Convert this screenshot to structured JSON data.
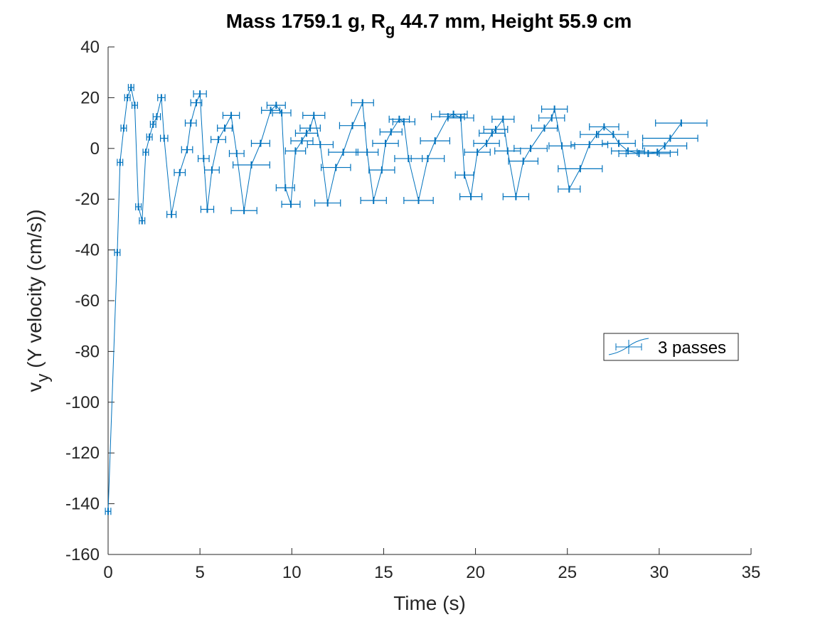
{
  "chart_data": {
    "type": "line",
    "title_parts": [
      "Mass 1759.1 g, R",
      "g",
      " 44.7 mm,  Height 55.9 cm"
    ],
    "xlabel": "Time (s)",
    "ylabel_parts": [
      "v",
      "y",
      " (Y velocity (cm/s))"
    ],
    "xlim": [
      0,
      35
    ],
    "ylim": [
      -160,
      40
    ],
    "xticks": [
      0,
      5,
      10,
      15,
      20,
      25,
      30,
      35
    ],
    "yticks": [
      40,
      20,
      0,
      -20,
      -40,
      -60,
      -80,
      -100,
      -120,
      -140,
      -160
    ],
    "grid": false,
    "legend_position": "right",
    "colors": {
      "series": "#0072bd",
      "axis": "#262626"
    },
    "series": [
      {
        "name": "3 passes",
        "points": [
          {
            "x": 0.0,
            "y": -143,
            "err": 0.15
          },
          {
            "x": 0.5,
            "y": -41,
            "err": 0.15
          },
          {
            "x": 0.65,
            "y": -5.5,
            "err": 0.15
          },
          {
            "x": 0.85,
            "y": 8,
            "err": 0.15
          },
          {
            "x": 1.05,
            "y": 20,
            "err": 0.15
          },
          {
            "x": 1.25,
            "y": 24,
            "err": 0.15
          },
          {
            "x": 1.45,
            "y": 17,
            "err": 0.15
          },
          {
            "x": 1.65,
            "y": -23,
            "err": 0.15
          },
          {
            "x": 1.85,
            "y": -28.5,
            "err": 0.15
          },
          {
            "x": 2.05,
            "y": -1.5,
            "err": 0.15
          },
          {
            "x": 2.25,
            "y": 4.5,
            "err": 0.15
          },
          {
            "x": 2.45,
            "y": 9.5,
            "err": 0.15
          },
          {
            "x": 2.65,
            "y": 12.5,
            "err": 0.2
          },
          {
            "x": 2.9,
            "y": 20,
            "err": 0.2
          },
          {
            "x": 3.05,
            "y": 4,
            "err": 0.2
          },
          {
            "x": 3.45,
            "y": -26,
            "err": 0.25
          },
          {
            "x": 3.9,
            "y": -9.5,
            "err": 0.3
          },
          {
            "x": 4.3,
            "y": -0.5,
            "err": 0.3
          },
          {
            "x": 4.5,
            "y": 10,
            "err": 0.3
          },
          {
            "x": 4.8,
            "y": 18,
            "err": 0.3
          },
          {
            "x": 5.0,
            "y": 21.5,
            "err": 0.35
          },
          {
            "x": 5.2,
            "y": -4,
            "err": 0.3
          },
          {
            "x": 5.4,
            "y": -24,
            "err": 0.35
          },
          {
            "x": 5.65,
            "y": -8.5,
            "err": 0.4
          },
          {
            "x": 6.0,
            "y": 3.5,
            "err": 0.4
          },
          {
            "x": 6.35,
            "y": 8,
            "err": 0.4
          },
          {
            "x": 6.7,
            "y": 13,
            "err": 0.45
          },
          {
            "x": 7.0,
            "y": -2,
            "err": 0.4
          },
          {
            "x": 7.4,
            "y": -24.5,
            "err": 0.7
          },
          {
            "x": 7.8,
            "y": -6.5,
            "err": 1.0
          },
          {
            "x": 8.3,
            "y": 2,
            "err": 0.5
          },
          {
            "x": 8.85,
            "y": 15,
            "err": 0.5
          },
          {
            "x": 9.15,
            "y": 17,
            "err": 0.5
          },
          {
            "x": 9.45,
            "y": 14,
            "err": 0.5
          },
          {
            "x": 9.65,
            "y": -15.5,
            "err": 0.5
          },
          {
            "x": 9.95,
            "y": -22,
            "err": 0.5
          },
          {
            "x": 10.2,
            "y": -1,
            "err": 0.55
          },
          {
            "x": 10.55,
            "y": 3,
            "err": 0.6
          },
          {
            "x": 10.8,
            "y": 6,
            "err": 0.6
          },
          {
            "x": 11.0,
            "y": 8,
            "err": 0.55
          },
          {
            "x": 11.2,
            "y": 13,
            "err": 0.6
          },
          {
            "x": 11.55,
            "y": 1.5,
            "err": 0.7
          },
          {
            "x": 11.95,
            "y": -21.5,
            "err": 0.7
          },
          {
            "x": 12.4,
            "y": -7.5,
            "err": 0.8
          },
          {
            "x": 12.8,
            "y": -1.5,
            "err": 0.8
          },
          {
            "x": 13.3,
            "y": 9,
            "err": 0.7
          },
          {
            "x": 13.85,
            "y": 18,
            "err": 0.6
          },
          {
            "x": 14.1,
            "y": -1.5,
            "err": 0.6
          },
          {
            "x": 14.45,
            "y": -20.5,
            "err": 0.7
          },
          {
            "x": 14.9,
            "y": -8.5,
            "err": 0.7
          },
          {
            "x": 15.1,
            "y": 2,
            "err": 0.7
          },
          {
            "x": 15.4,
            "y": 6.5,
            "err": 0.6
          },
          {
            "x": 15.85,
            "y": 11.5,
            "err": 0.55
          },
          {
            "x": 16.1,
            "y": 10.5,
            "err": 0.6
          },
          {
            "x": 16.35,
            "y": -4,
            "err": 0.75
          },
          {
            "x": 16.9,
            "y": -20.5,
            "err": 0.8
          },
          {
            "x": 17.4,
            "y": -4,
            "err": 0.9
          },
          {
            "x": 17.8,
            "y": 3,
            "err": 0.8
          },
          {
            "x": 18.5,
            "y": 12.5,
            "err": 0.9
          },
          {
            "x": 18.8,
            "y": 13.5,
            "err": 0.75
          },
          {
            "x": 19.2,
            "y": 12,
            "err": 0.7
          },
          {
            "x": 19.4,
            "y": -10.5,
            "err": 0.5
          },
          {
            "x": 19.75,
            "y": -19,
            "err": 0.6
          },
          {
            "x": 20.1,
            "y": -1.5,
            "err": 0.7
          },
          {
            "x": 20.6,
            "y": 2,
            "err": 0.7
          },
          {
            "x": 20.9,
            "y": 6,
            "err": 0.7
          },
          {
            "x": 21.1,
            "y": 7.5,
            "err": 0.65
          },
          {
            "x": 21.5,
            "y": 11.5,
            "err": 0.6
          },
          {
            "x": 21.75,
            "y": -1,
            "err": 0.7
          },
          {
            "x": 22.2,
            "y": -19,
            "err": 0.7
          },
          {
            "x": 22.6,
            "y": -5,
            "err": 0.8
          },
          {
            "x": 23.0,
            "y": 0,
            "err": 0.9
          },
          {
            "x": 23.75,
            "y": 8,
            "err": 0.7
          },
          {
            "x": 24.15,
            "y": 12,
            "err": 0.7
          },
          {
            "x": 24.3,
            "y": 15.5,
            "err": 0.7
          },
          {
            "x": 24.7,
            "y": 1,
            "err": 0.7
          },
          {
            "x": 25.1,
            "y": -16,
            "err": 0.6
          },
          {
            "x": 25.7,
            "y": -8,
            "err": 1.2
          },
          {
            "x": 26.2,
            "y": 1.5,
            "err": 1.0
          },
          {
            "x": 26.6,
            "y": 5.5,
            "err": 0.9
          },
          {
            "x": 27.0,
            "y": 8.5,
            "err": 0.8
          },
          {
            "x": 27.5,
            "y": 5.5,
            "err": 0.8
          },
          {
            "x": 27.8,
            "y": 2,
            "err": 0.9
          },
          {
            "x": 28.3,
            "y": -1,
            "err": 0.9
          },
          {
            "x": 28.9,
            "y": -2,
            "err": 1.1
          },
          {
            "x": 29.4,
            "y": -2,
            "err": 1.2
          },
          {
            "x": 29.9,
            "y": -1.5,
            "err": 1.1
          },
          {
            "x": 30.3,
            "y": 1,
            "err": 1.2
          },
          {
            "x": 30.6,
            "y": 4,
            "err": 1.5
          },
          {
            "x": 31.2,
            "y": 10,
            "err": 1.4
          }
        ]
      }
    ]
  }
}
